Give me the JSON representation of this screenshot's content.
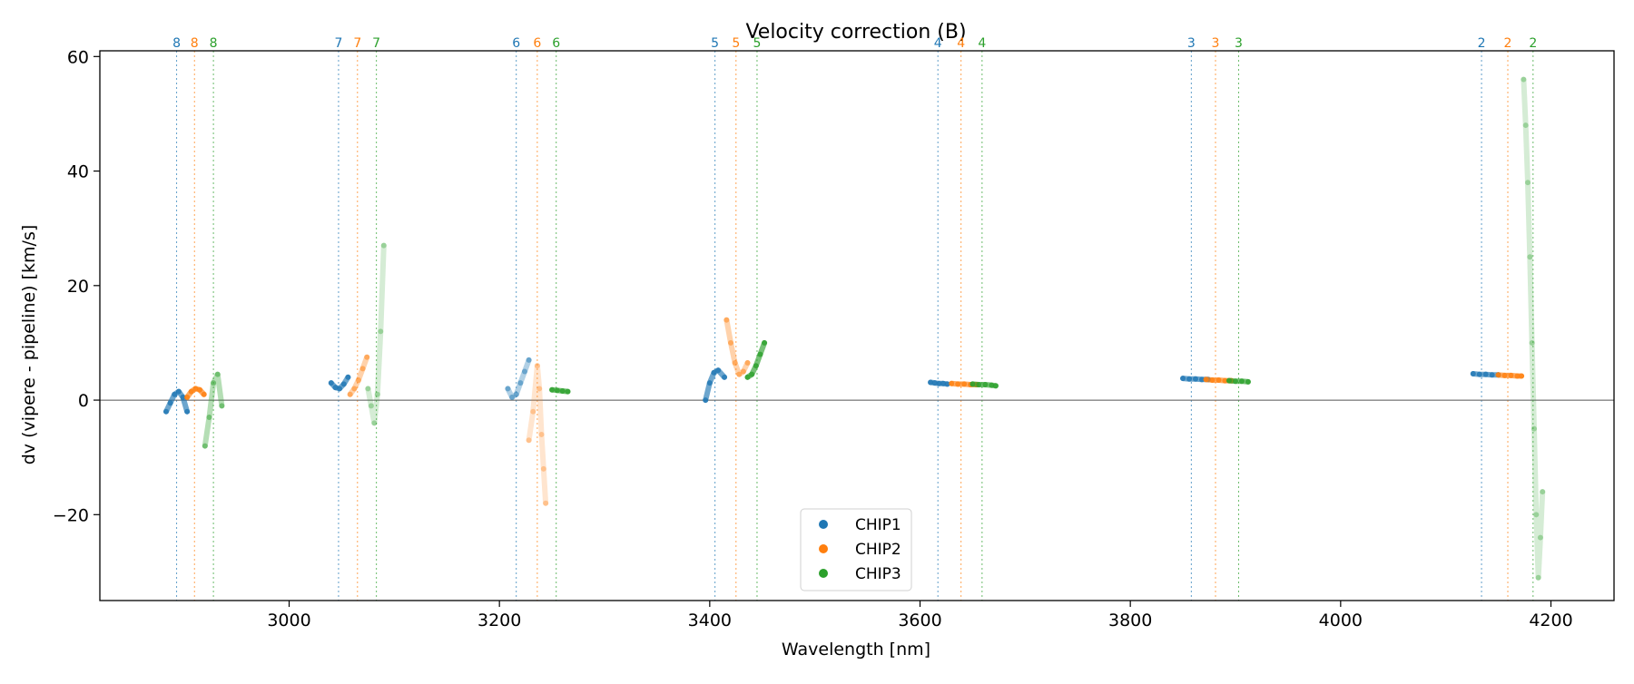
{
  "chart_data": {
    "type": "scatter",
    "title": "Velocity correction (B)",
    "xlabel": "Wavelength [nm]",
    "ylabel": "dv (vipere - pipeline) [km/s]",
    "xlim": [
      2820,
      4260
    ],
    "ylim": [
      -35,
      61
    ],
    "xticks": [
      3000,
      3200,
      3400,
      3600,
      3800,
      4000,
      4200
    ],
    "yticks": [
      -20,
      0,
      20,
      40,
      60
    ],
    "zero_line": 0,
    "legend": {
      "position": "lower-center",
      "entries": [
        "CHIP1",
        "CHIP2",
        "CHIP3"
      ]
    },
    "colors": {
      "CHIP1": "#1f77b4",
      "CHIP2": "#ff7f0e",
      "CHIP3": "#2ca02c"
    },
    "order_markers": [
      {
        "order": "8",
        "chip": "CHIP1",
        "x": 2893
      },
      {
        "order": "8",
        "chip": "CHIP2",
        "x": 2910
      },
      {
        "order": "8",
        "chip": "CHIP3",
        "x": 2928
      },
      {
        "order": "7",
        "chip": "CHIP1",
        "x": 3047
      },
      {
        "order": "7",
        "chip": "CHIP2",
        "x": 3065
      },
      {
        "order": "7",
        "chip": "CHIP3",
        "x": 3083
      },
      {
        "order": "6",
        "chip": "CHIP1",
        "x": 3216
      },
      {
        "order": "6",
        "chip": "CHIP2",
        "x": 3236
      },
      {
        "order": "6",
        "chip": "CHIP3",
        "x": 3254
      },
      {
        "order": "5",
        "chip": "CHIP1",
        "x": 3405
      },
      {
        "order": "5",
        "chip": "CHIP2",
        "x": 3425
      },
      {
        "order": "5",
        "chip": "CHIP3",
        "x": 3445
      },
      {
        "order": "4",
        "chip": "CHIP1",
        "x": 3617
      },
      {
        "order": "4",
        "chip": "CHIP2",
        "x": 3639
      },
      {
        "order": "4",
        "chip": "CHIP3",
        "x": 3659
      },
      {
        "order": "3",
        "chip": "CHIP1",
        "x": 3858
      },
      {
        "order": "3",
        "chip": "CHIP2",
        "x": 3881
      },
      {
        "order": "3",
        "chip": "CHIP3",
        "x": 3903
      },
      {
        "order": "2",
        "chip": "CHIP1",
        "x": 4134
      },
      {
        "order": "2",
        "chip": "CHIP2",
        "x": 4159
      },
      {
        "order": "2",
        "chip": "CHIP3",
        "x": 4183
      }
    ],
    "series": [
      {
        "name": "CHIP1",
        "segments": [
          {
            "x": [
              2883,
              2887,
              2891,
              2895,
              2899,
              2903
            ],
            "y": [
              -2,
              -0.5,
              1,
              1.5,
              0.5,
              -2
            ]
          },
          {
            "x": [
              3040,
              3044,
              3048,
              3052,
              3056
            ],
            "y": [
              3,
              2.2,
              2,
              2.8,
              4
            ]
          },
          {
            "x": [
              3208,
              3212,
              3216,
              3220,
              3224,
              3228
            ],
            "y": [
              2,
              0.5,
              1,
              3,
              5,
              7
            ]
          },
          {
            "x": [
              3396,
              3400,
              3404,
              3408,
              3414
            ],
            "y": [
              0,
              3,
              4.8,
              5.2,
              4
            ]
          },
          {
            "x": [
              3610,
              3614,
              3618,
              3622,
              3626
            ],
            "y": [
              3.1,
              3.0,
              2.9,
              2.9,
              2.8
            ]
          },
          {
            "x": [
              3850,
              3856,
              3862,
              3868,
              3874
            ],
            "y": [
              3.8,
              3.7,
              3.7,
              3.6,
              3.6
            ]
          },
          {
            "x": [
              4126,
              4132,
              4138,
              4144,
              4150
            ],
            "y": [
              4.6,
              4.5,
              4.5,
              4.4,
              4.4
            ]
          }
        ]
      },
      {
        "name": "CHIP2",
        "segments": [
          {
            "x": [
              2903,
              2907,
              2911,
              2915,
              2919
            ],
            "y": [
              0.5,
              1.5,
              2,
              1.8,
              1
            ]
          },
          {
            "x": [
              3058,
              3062,
              3066,
              3070,
              3074
            ],
            "y": [
              1,
              2,
              3.5,
              5.5,
              7.5
            ]
          },
          {
            "x": [
              3228,
              3232,
              3236,
              3238,
              3240,
              3242,
              3244
            ],
            "y": [
              -7,
              -2,
              6,
              2,
              -6,
              -12,
              -18
            ]
          },
          {
            "x": [
              3416,
              3420,
              3424,
              3428,
              3432,
              3436
            ],
            "y": [
              14,
              10,
              6.5,
              4.5,
              5,
              6.5
            ]
          },
          {
            "x": [
              3630,
              3636,
              3642,
              3648,
              3654
            ],
            "y": [
              2.9,
              2.8,
              2.8,
              2.7,
              2.7
            ]
          },
          {
            "x": [
              3872,
              3878,
              3884,
              3890,
              3896
            ],
            "y": [
              3.6,
              3.5,
              3.5,
              3.4,
              3.4
            ]
          },
          {
            "x": [
              4150,
              4156,
              4162,
              4168,
              4172
            ],
            "y": [
              4.4,
              4.3,
              4.3,
              4.2,
              4.2
            ]
          }
        ]
      },
      {
        "name": "CHIP3",
        "segments": [
          {
            "x": [
              2920,
              2924,
              2928,
              2932,
              2936
            ],
            "y": [
              -8,
              -3,
              3,
              4.5,
              -1
            ]
          },
          {
            "x": [
              3075,
              3078,
              3081,
              3084,
              3087,
              3090
            ],
            "y": [
              2,
              -1,
              -4,
              1,
              12,
              27
            ]
          },
          {
            "x": [
              3250,
              3255,
              3260,
              3265
            ],
            "y": [
              1.8,
              1.7,
              1.6,
              1.5
            ]
          },
          {
            "x": [
              3436,
              3440,
              3444,
              3448,
              3452
            ],
            "y": [
              4,
              4.5,
              6,
              8,
              10
            ]
          },
          {
            "x": [
              3650,
              3656,
              3662,
              3668,
              3672
            ],
            "y": [
              2.8,
              2.7,
              2.7,
              2.6,
              2.5
            ]
          },
          {
            "x": [
              3894,
              3900,
              3906,
              3912
            ],
            "y": [
              3.4,
              3.3,
              3.3,
              3.2
            ]
          },
          {
            "x": [
              4174,
              4176,
              4178,
              4180,
              4182,
              4184,
              4186,
              4188,
              4190,
              4192
            ],
            "y": [
              56,
              48,
              38,
              25,
              10,
              -5,
              -20,
              -31,
              -24,
              -16
            ]
          }
        ]
      }
    ]
  }
}
